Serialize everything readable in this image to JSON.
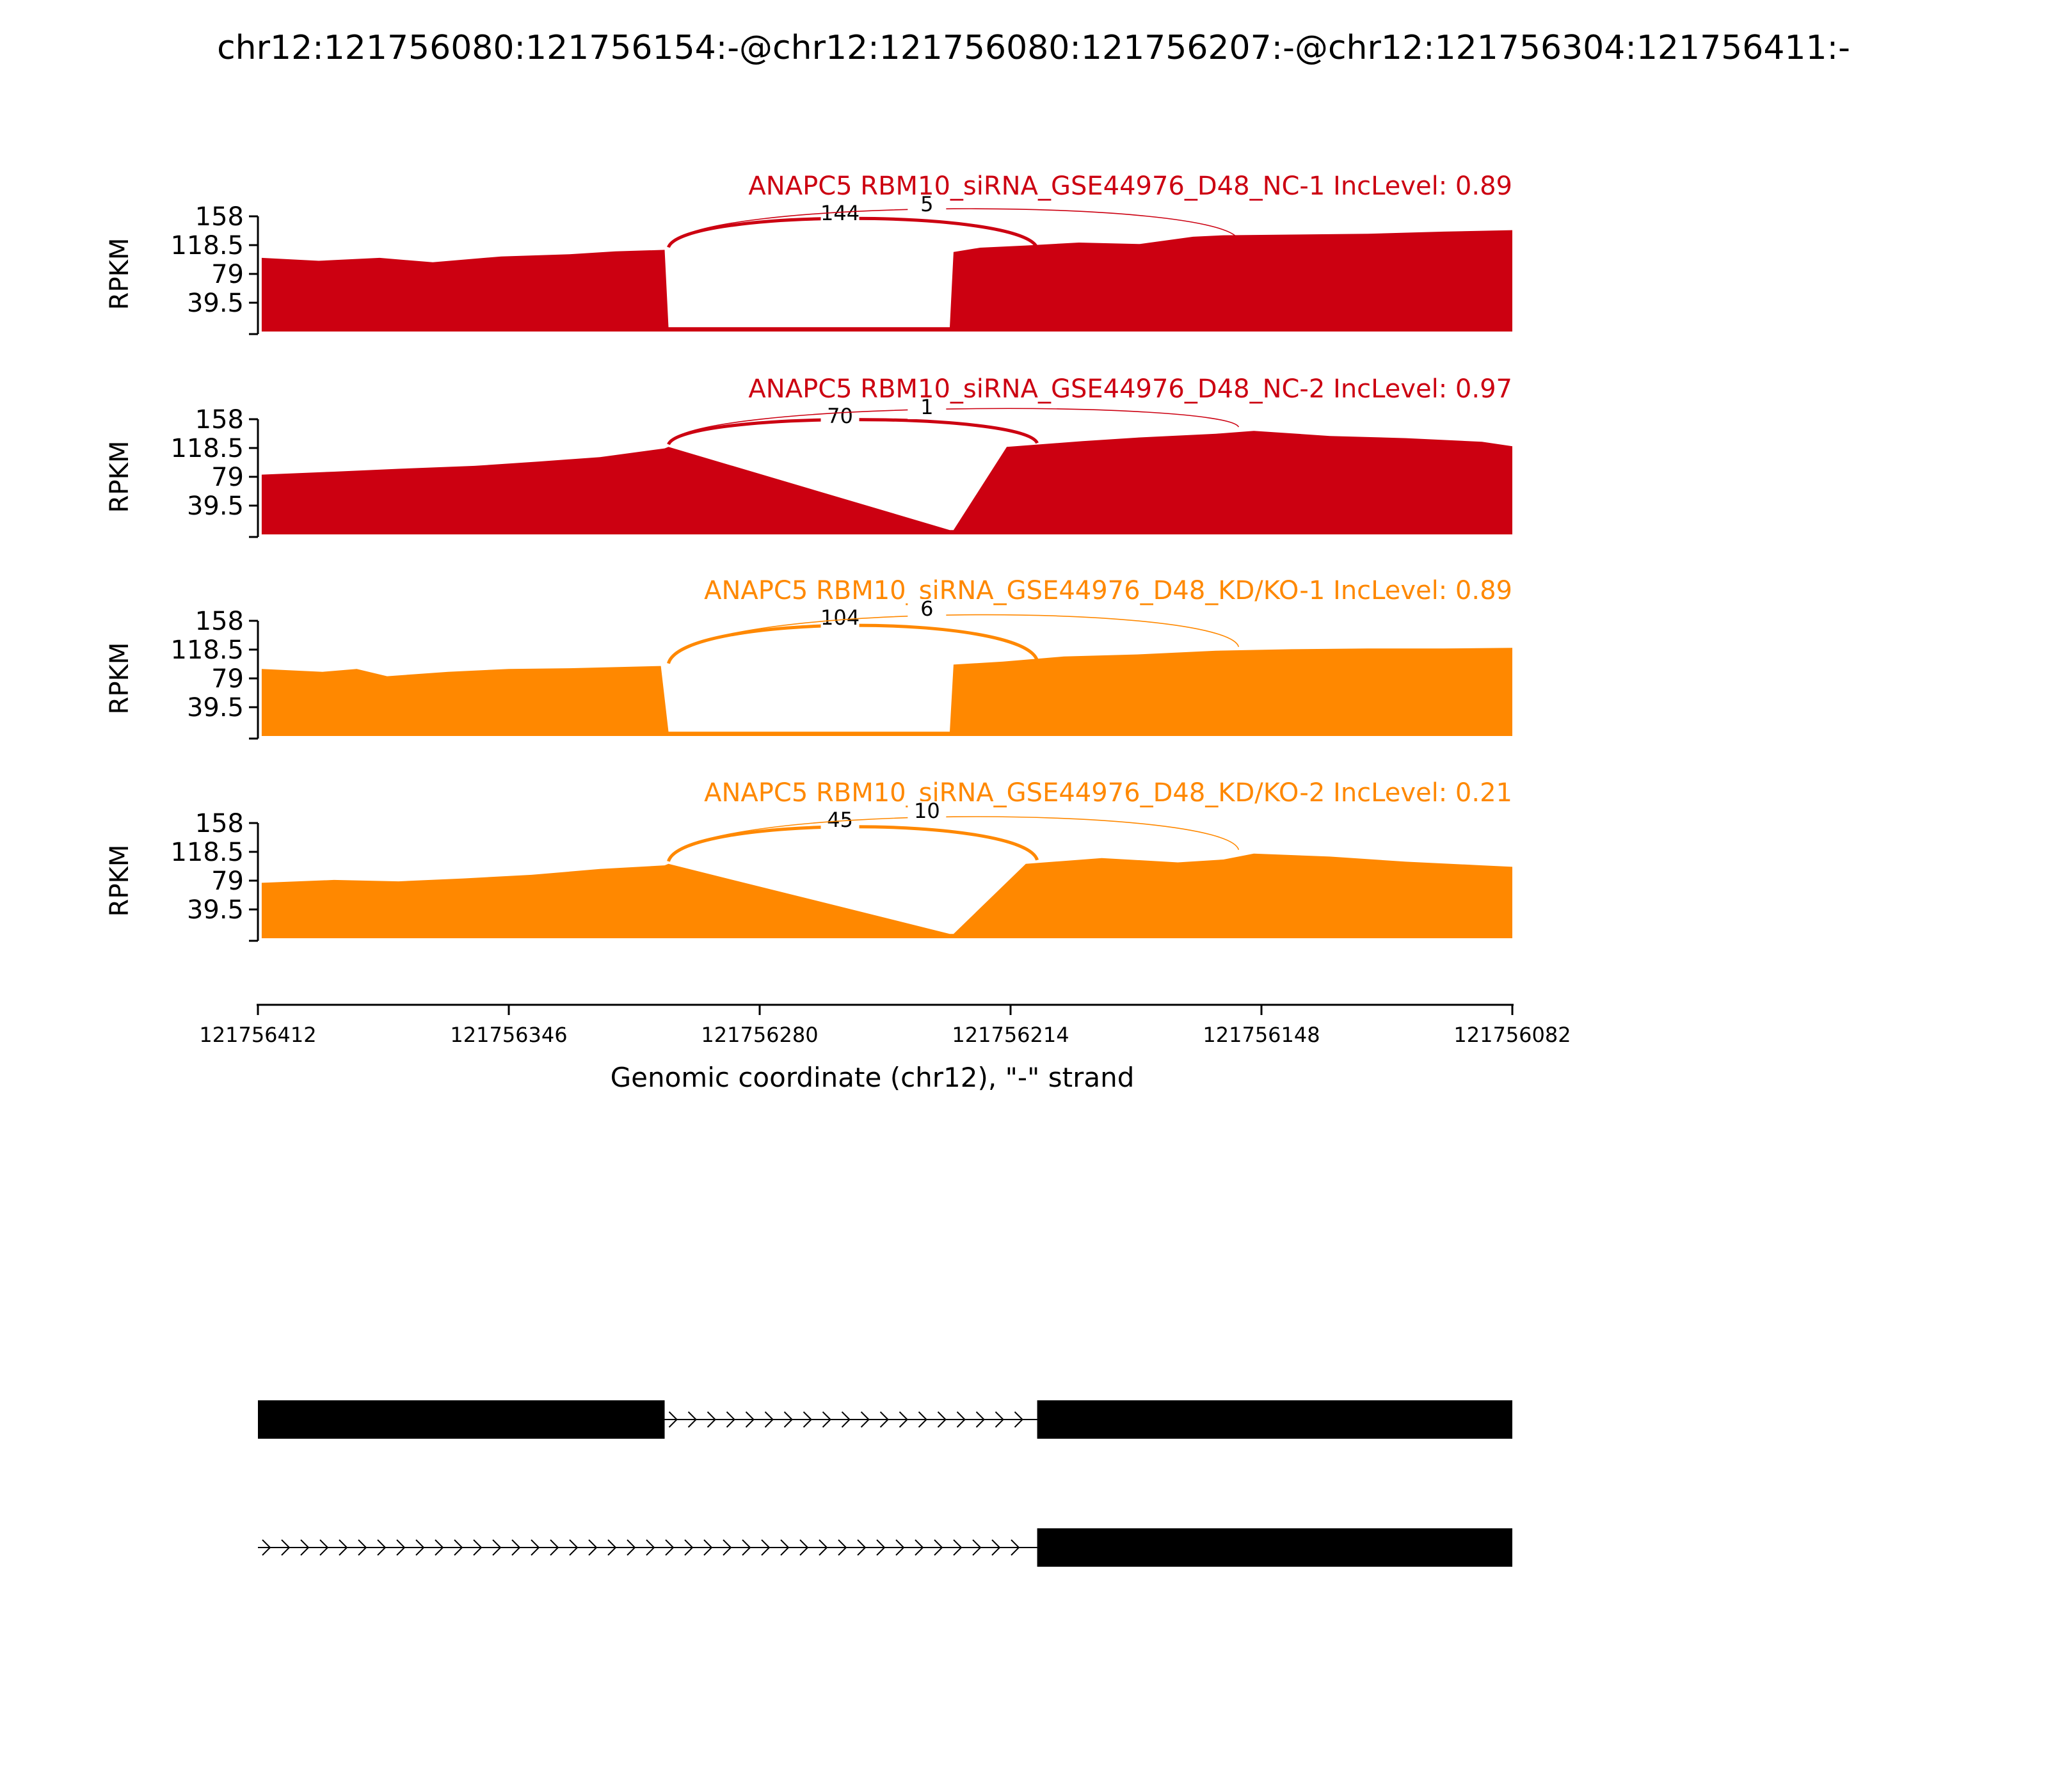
{
  "figure_title": "chr12:121756080:121756154:-@chr12:121756080:121756207:-@chr12:121756304:121756411:-",
  "chart_data": {
    "type": "area",
    "title": "chr12:121756080:121756154:-@chr12:121756080:121756207:-@chr12:121756304:121756411:-",
    "xlabel": "Genomic coordinate (chr12), \"-\" strand",
    "ylabel": "RPKM",
    "xlim": [
      121756412,
      121756082
    ],
    "x_ticks": [
      "121756412",
      "121756346",
      "121756280",
      "121756214",
      "121756148",
      "121756082"
    ],
    "ylim": [
      0,
      158
    ],
    "y_ticks": [
      "158",
      "118.5",
      "79",
      "39.5"
    ],
    "grid": false,
    "tracks": [
      {
        "label": "ANAPC5 RBM10_siRNA_GSE44976_D48_NC-1 IncLevel: 0.89",
        "color": "#cc0011",
        "x": [
          121756411,
          121756396,
          121756380,
          121756366,
          121756348,
          121756330,
          121756318,
          121756305,
          121756304,
          121756230,
          121756229,
          121756222,
          121756210,
          121756196,
          121756180,
          121756166,
          121756158,
          121756140,
          121756120,
          121756100,
          121756082
        ],
        "y": [
          101,
          97,
          101,
          95,
          103,
          106,
          110,
          112,
          6,
          6,
          109,
          115,
          118,
          122,
          120,
          130,
          132,
          133,
          134,
          137,
          139
        ],
        "junctions": [
          {
            "from": 121756304,
            "to": 121756207,
            "count": "144"
          },
          {
            "from": 121756304,
            "to": 121756154,
            "count": "5"
          }
        ]
      },
      {
        "label": "ANAPC5 RBM10_siRNA_GSE44976_D48_NC-2 IncLevel: 0.97",
        "color": "#cc0011",
        "x": [
          121756411,
          121756392,
          121756375,
          121756355,
          121756338,
          121756322,
          121756305,
          121756304,
          121756230,
          121756229,
          121756215,
          121756195,
          121756180,
          121756160,
          121756150,
          121756130,
          121756110,
          121756090,
          121756082
        ],
        "y": [
          82,
          86,
          90,
          94,
          100,
          106,
          118,
          120,
          6,
          6,
          120,
          128,
          133,
          138,
          142,
          135,
          132,
          127,
          121
        ],
        "junctions": [
          {
            "from": 121756304,
            "to": 121756207,
            "count": "70"
          },
          {
            "from": 121756304,
            "to": 121756154,
            "count": "1"
          }
        ]
      },
      {
        "label": "ANAPC5 RBM10_siRNA_GSE44976_D48_KD/KO-1 IncLevel: 0.89",
        "color": "#ff8800",
        "x": [
          121756411,
          121756395,
          121756386,
          121756378,
          121756362,
          121756346,
          121756330,
          121756306,
          121756304,
          121756230,
          121756229,
          121756216,
          121756200,
          121756180,
          121756160,
          121756140,
          121756120,
          121756100,
          121756082
        ],
        "y": [
          92,
          88,
          92,
          82,
          88,
          92,
          93,
          96,
          6,
          6,
          98,
          102,
          109,
          112,
          117,
          119,
          120,
          120,
          121
        ],
        "junctions": [
          {
            "from": 121756304,
            "to": 121756207,
            "count": "104"
          },
          {
            "from": 121756304,
            "to": 121756154,
            "count": "6"
          }
        ]
      },
      {
        "label": "ANAPC5 RBM10_siRNA_GSE44976_D48_KD/KO-2 IncLevel: 0.21",
        "color": "#ff8800",
        "x": [
          121756411,
          121756392,
          121756375,
          121756358,
          121756340,
          121756322,
          121756305,
          121756304,
          121756230,
          121756229,
          121756210,
          121756190,
          121756170,
          121756158,
          121756150,
          121756130,
          121756110,
          121756090,
          121756082
        ],
        "y": [
          76,
          80,
          78,
          82,
          87,
          95,
          100,
          102,
          6,
          6,
          102,
          110,
          104,
          108,
          116,
          112,
          105,
          100,
          98
        ],
        "junctions": [
          {
            "from": 121756304,
            "to": 121756207,
            "count": "45"
          },
          {
            "from": 121756304,
            "to": 121756154,
            "count": "10"
          }
        ]
      }
    ],
    "isoforms": [
      {
        "exons": [
          [
            121756412,
            121756305
          ],
          [
            121756207,
            121756082
          ]
        ]
      },
      {
        "exons": [
          [
            121756207,
            121756082
          ]
        ]
      }
    ]
  }
}
